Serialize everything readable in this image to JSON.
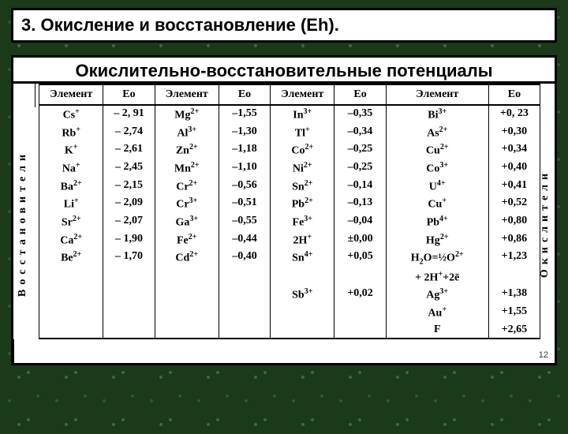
{
  "title": "3. Окисление и восстановление (Eh).",
  "subtitle": "Окислительно-восстановительные потенциалы",
  "left_label": "Восстановители",
  "right_label": "Окислители",
  "page_num": "12",
  "headers": [
    "Элемент",
    "Ео",
    "Элемент",
    "Ео",
    "Элемент",
    "Ео",
    "Элемент",
    "Ео"
  ],
  "rows": [
    [
      "Cs+",
      "– 2, 91",
      "Mg2+",
      "–1,55",
      "In3+",
      "–0,35",
      "Bi3+",
      "+0, 23"
    ],
    [
      "Rb+",
      "– 2,74",
      "Al3+",
      "–1,30",
      "Tl+",
      "–0,34",
      "As2+",
      "+0,30"
    ],
    [
      "K+",
      "– 2,61",
      "Zn2+",
      "–1,18",
      "Co2+",
      "–0,25",
      "Cu2+",
      "+0,34"
    ],
    [
      "Na+",
      "– 2,45",
      "Mn2+",
      "–1,10",
      "Ni2+",
      "–0,25",
      "Co3+",
      "+0,40"
    ],
    [
      "Ba2+",
      "– 2,15",
      "Cr2+",
      "–0,56",
      "Sn2+",
      "–0,14",
      "U4+",
      "+0,41"
    ],
    [
      "Li+",
      "– 2,09",
      "Cr3+",
      "–0,51",
      "Pb2+",
      "–0,13",
      "Cu+",
      "+0,52"
    ],
    [
      "Sr2+",
      "– 2,07",
      "Ga3+",
      "–0,55",
      "Fe3+",
      "–0,04",
      "Pb4+",
      "+0,80"
    ],
    [
      "Ca2+",
      "– 1,90",
      "Fe2+",
      "–0,44",
      "2H+",
      "±0,00",
      "Hg2+",
      "+0,86"
    ],
    [
      "Be2+",
      "– 1,70",
      "Cd2+",
      "–0,40",
      "Sn4+",
      "+0,05",
      "H2O=½O2+",
      "+1,23"
    ],
    [
      "",
      "",
      "",
      "",
      "",
      "",
      "+ 2H++2ē",
      ""
    ],
    [
      "",
      "",
      "",
      "",
      "Sb3+",
      "+0,02",
      "Ag3+",
      "+1,38"
    ],
    [
      "",
      "",
      "",
      "",
      "",
      "",
      "Au+",
      "+1,55"
    ],
    [
      "",
      "",
      "",
      "",
      "",
      "",
      "F",
      "+2,65"
    ]
  ],
  "colors": {
    "bg": "#1a3a1a",
    "box": "#ffffff",
    "border": "#000000"
  }
}
